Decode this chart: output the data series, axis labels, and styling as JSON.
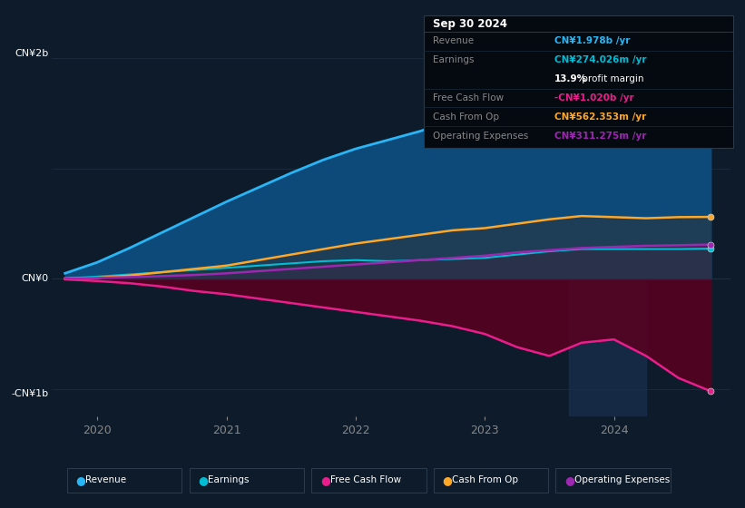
{
  "background_color": "#0d1b2a",
  "chart_bg": "#0d1b2a",
  "x": [
    2019.75,
    2020.0,
    2020.25,
    2020.5,
    2020.75,
    2021.0,
    2021.25,
    2021.5,
    2021.75,
    2022.0,
    2022.25,
    2022.5,
    2022.75,
    2023.0,
    2023.25,
    2023.5,
    2023.75,
    2024.0,
    2024.25,
    2024.5,
    2024.75
  ],
  "revenue": [
    0.05,
    0.15,
    0.28,
    0.42,
    0.56,
    0.7,
    0.83,
    0.96,
    1.08,
    1.18,
    1.26,
    1.34,
    1.44,
    1.55,
    1.7,
    1.82,
    1.91,
    1.93,
    1.88,
    1.93,
    1.978
  ],
  "earnings": [
    0.005,
    0.02,
    0.04,
    0.06,
    0.08,
    0.1,
    0.12,
    0.14,
    0.16,
    0.17,
    0.16,
    0.17,
    0.18,
    0.19,
    0.22,
    0.25,
    0.27,
    0.27,
    0.27,
    0.27,
    0.274
  ],
  "free_cash_flow": [
    -0.005,
    -0.02,
    -0.04,
    -0.07,
    -0.11,
    -0.14,
    -0.18,
    -0.22,
    -0.26,
    -0.3,
    -0.34,
    -0.38,
    -0.43,
    -0.5,
    -0.62,
    -0.7,
    -0.58,
    -0.55,
    -0.7,
    -0.9,
    -1.02
  ],
  "cash_from_op": [
    0.003,
    0.01,
    0.03,
    0.06,
    0.09,
    0.12,
    0.17,
    0.22,
    0.27,
    0.32,
    0.36,
    0.4,
    0.44,
    0.46,
    0.5,
    0.54,
    0.57,
    0.56,
    0.55,
    0.56,
    0.562
  ],
  "operating_expenses": [
    0.002,
    0.008,
    0.016,
    0.025,
    0.035,
    0.05,
    0.07,
    0.09,
    0.11,
    0.13,
    0.15,
    0.17,
    0.19,
    0.21,
    0.24,
    0.26,
    0.28,
    0.29,
    0.3,
    0.305,
    0.311
  ],
  "revenue_color": "#29b6f6",
  "revenue_fill": "#0d4a7a",
  "earnings_color": "#00bcd4",
  "earnings_fill": "#00404a",
  "fcf_color": "#e91e8c",
  "fcf_fill": "#5a0020",
  "cashfromop_color": "#ffa726",
  "opex_color": "#9c27b0",
  "highlight_x_start": 2023.65,
  "highlight_x_end": 2024.25,
  "highlight_color": "#1a3050",
  "yticks": [
    2.0,
    1.0,
    0.0,
    -1.0
  ],
  "ylim": [
    -1.25,
    2.3
  ],
  "xlim": [
    2019.65,
    2024.9
  ],
  "xtick_labels": [
    "2020",
    "2021",
    "2022",
    "2023",
    "2024"
  ],
  "xtick_positions": [
    2020.0,
    2021.0,
    2022.0,
    2023.0,
    2024.0
  ],
  "ylabel_top": "CN¥2b",
  "ylabel_zero": "CN¥0",
  "ylabel_bottom": "-CN¥1b",
  "infobox_title": "Sep 30 2024",
  "infobox_rows": [
    {
      "label": "Revenue",
      "value": "CN¥1.978b /yr",
      "color": "#29b6f6"
    },
    {
      "label": "Earnings",
      "value": "CN¥274.026m /yr",
      "color": "#00bcd4"
    },
    {
      "label": "",
      "value": "13.9% profit margin",
      "color": "#ffffff"
    },
    {
      "label": "Free Cash Flow",
      "value": "-CN¥1.020b /yr",
      "color": "#e91e8c"
    },
    {
      "label": "Cash From Op",
      "value": "CN¥562.353m /yr",
      "color": "#ffa726"
    },
    {
      "label": "Operating Expenses",
      "value": "CN¥311.275m /yr",
      "color": "#9c27b0"
    }
  ],
  "infobox_bg": "#050a10",
  "infobox_border": "#2a3a4a",
  "infobox_text_color": "#888888",
  "infobox_title_color": "#ffffff",
  "legend_labels": [
    "Revenue",
    "Earnings",
    "Free Cash Flow",
    "Cash From Op",
    "Operating Expenses"
  ],
  "legend_colors": [
    "#29b6f6",
    "#00bcd4",
    "#e91e8c",
    "#ffa726",
    "#9c27b0"
  ],
  "dot_positions": [
    [
      2024.75,
      1.978,
      "#29b6f6"
    ],
    [
      2024.75,
      0.274,
      "#00bcd4"
    ],
    [
      2024.75,
      -1.02,
      "#e91e8c"
    ],
    [
      2024.75,
      0.562,
      "#ffa726"
    ],
    [
      2024.75,
      0.311,
      "#9c27b0"
    ]
  ]
}
